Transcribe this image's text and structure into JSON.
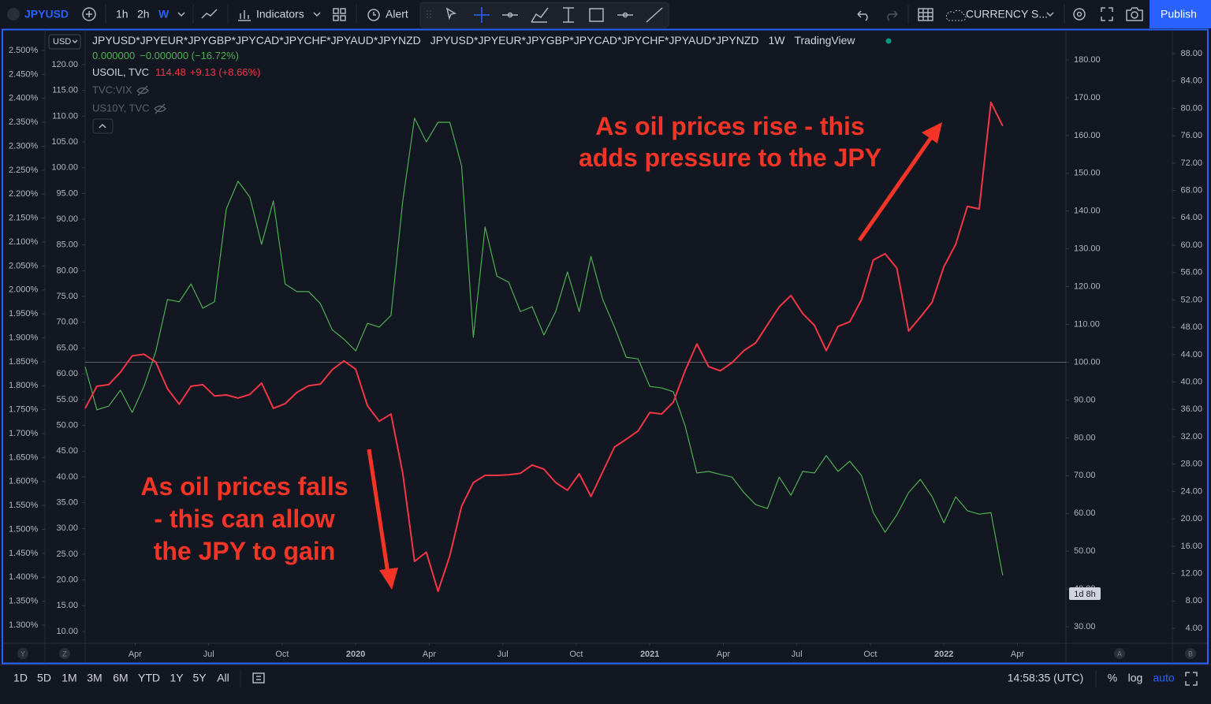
{
  "toolbar": {
    "symbol": "JPYUSD",
    "intervals": [
      "1h",
      "2h",
      "W"
    ],
    "indicators": "Indicators",
    "alert": "Alert",
    "layout": "CURRENCY S...",
    "publish": "Publish"
  },
  "legend": {
    "description": "JPYUSD*JPYEUR*JPYGBP*JPYCAD*JPYCHF*JPYAUD*JPYNZD",
    "interval": "1W",
    "source": "TradingView",
    "main_values": [
      "0.000000",
      "−0.000000 (−16.72%)"
    ],
    "oil_value": 114.48,
    "oil_change": "+9.13 (+8.66%)",
    "hidden_studies": [
      "TVC:VIX",
      "US10Y, TVC"
    ]
  },
  "currency": "USD",
  "countdown": "1d 8h",
  "axis_buttons": [
    "Y",
    "Z",
    "A",
    "B"
  ],
  "bottom": {
    "ranges": [
      "1D",
      "5D",
      "1M",
      "3M",
      "6M",
      "YTD",
      "1Y",
      "5Y",
      "All"
    ],
    "time": "14:58:35 (UTC)",
    "options": [
      "%",
      "log",
      "auto"
    ]
  },
  "chart_data": {
    "type": "line",
    "x": [
      2019.08,
      2019.12,
      2019.16,
      2019.2,
      2019.24,
      2019.28,
      2019.32,
      2019.36,
      2019.4,
      2019.44,
      2019.48,
      2019.52,
      2019.56,
      2019.6,
      2019.64,
      2019.68,
      2019.72,
      2019.76,
      2019.8,
      2019.84,
      2019.88,
      2019.92,
      2019.96,
      2020,
      2020.04,
      2020.08,
      2020.12,
      2020.16,
      2020.2,
      2020.24,
      2020.28,
      2020.32,
      2020.36,
      2020.4,
      2020.44,
      2020.48,
      2020.52,
      2020.56,
      2020.6,
      2020.64,
      2020.68,
      2020.72,
      2020.76,
      2020.8,
      2020.84,
      2020.88,
      2020.92,
      2020.96,
      2021,
      2021.04,
      2021.08,
      2021.12,
      2021.16,
      2021.2,
      2021.24,
      2021.28,
      2021.32,
      2021.36,
      2021.4,
      2021.44,
      2021.48,
      2021.52,
      2021.56,
      2021.6,
      2021.64,
      2021.68,
      2021.72,
      2021.76,
      2021.8,
      2021.84,
      2021.88,
      2021.92,
      2021.96,
      2022,
      2022.04,
      2022.08,
      2022.12,
      2022.16,
      2022.2
    ],
    "xlim": [
      2019.08,
      2022.415
    ],
    "xticks": [
      {
        "value": 2019.25,
        "label": "Apr"
      },
      {
        "value": 2019.5,
        "label": "Jul"
      },
      {
        "value": 2019.75,
        "label": "Oct"
      },
      2020,
      {
        "value": 2020.25,
        "label": "Apr"
      },
      {
        "value": 2020.5,
        "label": "Jul"
      },
      {
        "value": 2020.75,
        "label": "Oct"
      },
      2021,
      {
        "value": 2021.25,
        "label": "Apr"
      },
      {
        "value": 2021.5,
        "label": "Jul"
      },
      {
        "value": 2021.75,
        "label": "Oct"
      },
      2022,
      {
        "value": 2022.25,
        "label": "Apr"
      }
    ],
    "series": [
      {
        "name": "JPYUSD*JPYEUR*JPYGBP*JPYCAD*JPYCHF*JPYAUD*JPYNZD",
        "color": "#4caf50",
        "axis": "y2",
        "values": [
          98.8,
          87.4,
          88.4,
          92.6,
          86.7,
          93.6,
          102.8,
          116.6,
          116.0,
          120.7,
          114.3,
          116.0,
          140.6,
          147.9,
          143.7,
          131.2,
          142.7,
          120.7,
          118.7,
          118.7,
          115.5,
          108.6,
          106.1,
          103.0,
          110.3,
          109.3,
          112.4,
          142.7,
          164.6,
          158.3,
          163.5,
          163.5,
          152.0,
          106.6,
          135.8,
          122.8,
          121.2,
          113.4,
          114.7,
          107.2,
          113.4,
          123.9,
          113.4,
          128.0,
          116.6,
          109.3,
          101.3,
          100.9,
          93.6,
          93.2,
          92.2,
          83.2,
          70.7,
          71.1,
          70.3,
          69.6,
          65.5,
          62.3,
          61.3,
          69.6,
          64.8,
          71.1,
          70.7,
          75.3,
          71.1,
          73.8,
          70.0,
          60.2,
          55.0,
          59.6,
          65.5,
          69.0,
          64.4,
          57.5,
          64.4,
          60.7,
          59.8,
          60.2,
          43.6
        ]
      },
      {
        "name": "USOIL, TVC",
        "color": "#f23645",
        "values": [
          53.3,
          57.6,
          57.9,
          60.3,
          63.5,
          63.8,
          62.3,
          57.1,
          54.1,
          57.6,
          57.9,
          55.7,
          55.9,
          55.3,
          56.0,
          58.2,
          53.3,
          54.2,
          56.4,
          57.7,
          58.0,
          60.8,
          62.5,
          60.9,
          53.8,
          50.8,
          52.2,
          40.7,
          23.6,
          25.4,
          17.8,
          24.7,
          34.3,
          38.9,
          40.3,
          40.3,
          40.4,
          40.7,
          42.3,
          41.5,
          38.9,
          37.4,
          40.6,
          36.2,
          41.0,
          45.8,
          47.3,
          48.9,
          52.5,
          52.2,
          54.5,
          60.6,
          65.8,
          61.4,
          60.6,
          62.2,
          64.5,
          66.0,
          69.5,
          73.0,
          75.2,
          71.7,
          69.4,
          64.5,
          69.2,
          70.1,
          74.4,
          82.1,
          83.3,
          80.5,
          68.3,
          71.0,
          73.9,
          80.8,
          85.1,
          92.5,
          92.0,
          112.7,
          108.1
        ]
      }
    ],
    "baseline": 100,
    "ylim": [
      7.86,
      126.73
    ],
    "yticks": [
      {
        "value": 120,
        "label": "120.00"
      },
      {
        "value": 115,
        "label": "115.00"
      },
      {
        "value": 110,
        "label": "110.00"
      },
      {
        "value": 105,
        "label": "105.00"
      },
      {
        "value": 100,
        "label": "100.00"
      },
      {
        "value": 95,
        "label": "95.00"
      },
      {
        "value": 90,
        "label": "90.00"
      },
      {
        "value": 85,
        "label": "85.00"
      },
      {
        "value": 80,
        "label": "80.00"
      },
      {
        "value": 75,
        "label": "75.00"
      },
      {
        "value": 70,
        "label": "70.00"
      },
      {
        "value": 65,
        "label": "65.00"
      },
      {
        "value": 60,
        "label": "60.00"
      },
      {
        "value": 55,
        "label": "55.00"
      },
      {
        "value": 50,
        "label": "50.00"
      },
      {
        "value": 45,
        "label": "45.00"
      },
      {
        "value": 40,
        "label": "40.00"
      },
      {
        "value": 35,
        "label": "35.00"
      },
      {
        "value": 30,
        "label": "30.00"
      },
      {
        "value": 25,
        "label": "25.00"
      },
      {
        "value": 20,
        "label": "20.00"
      },
      {
        "value": 15,
        "label": "15.00"
      },
      {
        "value": 10,
        "label": "10.00"
      }
    ],
    "y2lim": [
      25.83,
      187.93
    ],
    "y2ticks": [
      {
        "value": 180,
        "label": "180.00"
      },
      {
        "value": 170,
        "label": "170.00"
      },
      {
        "value": 160,
        "label": "160.00"
      },
      {
        "value": 150,
        "label": "150.00"
      },
      {
        "value": 140,
        "label": "140.00"
      },
      {
        "value": 130,
        "label": "130.00"
      },
      {
        "value": 120,
        "label": "120.00"
      },
      {
        "value": 110,
        "label": "110.00"
      },
      {
        "value": 100,
        "label": "100.00"
      },
      {
        "value": 90,
        "label": "90.00"
      },
      {
        "value": 80,
        "label": "80.00"
      },
      {
        "value": 70,
        "label": "70.00"
      },
      {
        "value": 60,
        "label": "60.00"
      },
      {
        "value": 50,
        "label": "50.00"
      },
      {
        "value": 40,
        "label": "40.00"
      },
      {
        "value": 30,
        "label": "30.00"
      }
    ],
    "y3lim": [
      1.2638,
      2.5428
    ],
    "y3ticks": [
      {
        "value": 2.5,
        "label": "2.500%"
      },
      {
        "value": 2.45,
        "label": "2.450%"
      },
      {
        "value": 2.4,
        "label": "2.400%"
      },
      {
        "value": 2.35,
        "label": "2.350%"
      },
      {
        "value": 2.3,
        "label": "2.300%"
      },
      {
        "value": 2.25,
        "label": "2.250%"
      },
      {
        "value": 2.2,
        "label": "2.200%"
      },
      {
        "value": 2.15,
        "label": "2.150%"
      },
      {
        "value": 2.1,
        "label": "2.100%"
      },
      {
        "value": 2.05,
        "label": "2.050%"
      },
      {
        "value": 2.0,
        "label": "2.000%"
      },
      {
        "value": 1.95,
        "label": "1.950%"
      },
      {
        "value": 1.9,
        "label": "1.900%"
      },
      {
        "value": 1.85,
        "label": "1.850%"
      },
      {
        "value": 1.8,
        "label": "1.800%"
      },
      {
        "value": 1.75,
        "label": "1.750%"
      },
      {
        "value": 1.7,
        "label": "1.700%"
      },
      {
        "value": 1.65,
        "label": "1.650%"
      },
      {
        "value": 1.6,
        "label": "1.600%"
      },
      {
        "value": 1.55,
        "label": "1.550%"
      },
      {
        "value": 1.5,
        "label": "1.500%"
      },
      {
        "value": 1.45,
        "label": "1.450%"
      },
      {
        "value": 1.4,
        "label": "1.400%"
      },
      {
        "value": 1.35,
        "label": "1.350%"
      },
      {
        "value": 1.3,
        "label": "1.300%"
      }
    ],
    "y4lim": [
      1.93,
      91.46
    ],
    "y4ticks": [
      {
        "value": 88,
        "label": "88.00"
      },
      {
        "value": 84,
        "label": "84.00"
      },
      {
        "value": 80,
        "label": "80.00"
      },
      {
        "value": 76,
        "label": "76.00"
      },
      {
        "value": 72,
        "label": "72.00"
      },
      {
        "value": 68,
        "label": "68.00"
      },
      {
        "value": 64,
        "label": "64.00"
      },
      {
        "value": 60,
        "label": "60.00"
      },
      {
        "value": 56,
        "label": "56.00"
      },
      {
        "value": 52,
        "label": "52.00"
      },
      {
        "value": 48,
        "label": "48.00"
      },
      {
        "value": 44,
        "label": "44.00"
      },
      {
        "value": 40,
        "label": "40.00"
      },
      {
        "value": 36,
        "label": "36.00"
      },
      {
        "value": 32,
        "label": "32.00"
      },
      {
        "value": 28,
        "label": "28.00"
      },
      {
        "value": 24,
        "label": "24.00"
      },
      {
        "value": 20,
        "label": "20.00"
      },
      {
        "value": 16,
        "label": "16.00"
      },
      {
        "value": 12,
        "label": "12.00"
      },
      {
        "value": 8,
        "label": "8.00"
      },
      {
        "value": 4,
        "label": "4.00"
      }
    ],
    "annotations": [
      {
        "lines": [
          "As oil prices rise - this",
          "adds pressure to the JPY"
        ],
        "color": "#f23526"
      },
      {
        "lines": [
          "As oil prices falls",
          "- this can allow",
          "the JPY to gain"
        ],
        "color": "#f23526"
      }
    ]
  }
}
